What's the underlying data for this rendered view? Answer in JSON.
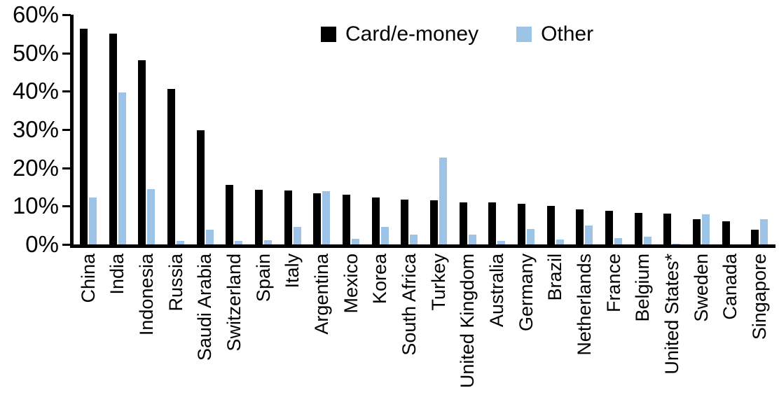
{
  "chart_data": {
    "type": "bar",
    "title": "",
    "xlabel": "",
    "ylabel": "",
    "ylim": [
      0,
      60
    ],
    "ytick_step": 10,
    "ytick_labels": [
      "0%",
      "10%",
      "20%",
      "30%",
      "40%",
      "50%",
      "60%"
    ],
    "grid": false,
    "legend_position": "top-center",
    "axis_color": "#000000",
    "categories": [
      "China",
      "India",
      "Indonesia",
      "Russia",
      "Saudi Arabia",
      "Switzerland",
      "Spain",
      "Italy",
      "Argentina",
      "Mexico",
      "Korea",
      "South Africa",
      "Turkey",
      "United Kingdom",
      "Australia",
      "Germany",
      "Brazil",
      "Netherlands",
      "France",
      "Belgium",
      "United States*",
      "Sweden",
      "Canada",
      "Singapore"
    ],
    "series": [
      {
        "name": "Card/e-money",
        "color": "#000000",
        "values": [
          56.3,
          55.0,
          48.2,
          40.6,
          29.8,
          15.6,
          14.3,
          14.1,
          13.4,
          13.0,
          12.2,
          11.8,
          11.6,
          11.0,
          10.9,
          10.7,
          10.0,
          9.2,
          8.7,
          8.2,
          8.0,
          6.5,
          6.0,
          3.8
        ]
      },
      {
        "name": "Other",
        "color": "#9DC3E6",
        "values": [
          12.3,
          39.7,
          14.5,
          1.0,
          3.9,
          0.9,
          1.1,
          4.6,
          13.9,
          1.4,
          4.6,
          2.5,
          22.6,
          2.5,
          1.0,
          4.0,
          1.2,
          5.0,
          1.6,
          2.1,
          0.2,
          7.9,
          0.0,
          6.6
        ]
      }
    ]
  }
}
